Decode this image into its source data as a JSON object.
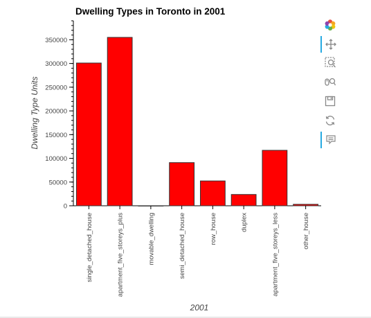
{
  "chart_data": {
    "type": "bar",
    "title": "Dwelling Types in Toronto in 2001",
    "xlabel": "2001",
    "ylabel": "Dwelling Type Units",
    "categories": [
      "single_detached_house",
      "apartment_five_storeys_plus",
      "movable_dwelling",
      "semi_detached_house",
      "row_house",
      "duplex",
      "apartment_five_storeys_less",
      "other_house"
    ],
    "values": [
      300930,
      355015,
      75,
      90995,
      52355,
      23785,
      116900,
      3040
    ],
    "ylim": [
      0,
      390000
    ],
    "yticks": [
      0,
      50000,
      100000,
      150000,
      200000,
      250000,
      300000,
      350000
    ],
    "ytick_labels": [
      "0",
      "50000",
      "100000",
      "150000",
      "200000",
      "250000",
      "300000",
      "350000"
    ],
    "bar_color": "#ff0000",
    "grid": false,
    "legend": "none"
  },
  "toolbar": {
    "tools": [
      "bokeh-logo-icon",
      "pan-icon",
      "box-zoom-icon",
      "wheel-zoom-icon",
      "save-icon",
      "reset-icon",
      "hover-icon"
    ]
  }
}
